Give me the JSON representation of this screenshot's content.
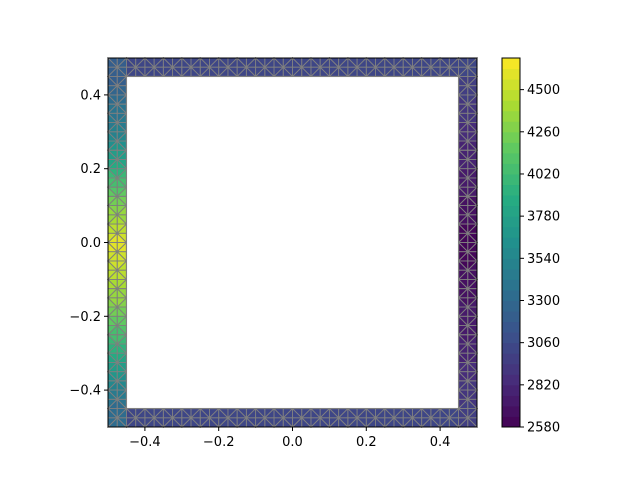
{
  "chart_data": {
    "type": "heatmap",
    "plot_kind": "filled tricontour over a triangulated square-ring mesh",
    "title": "",
    "xlabel": "",
    "ylabel": "",
    "xlim": [
      -0.5,
      0.5
    ],
    "ylim": [
      -0.5,
      0.5
    ],
    "x_ticks": [
      -0.4,
      -0.2,
      0.0,
      0.2,
      0.4
    ],
    "x_tick_labels": [
      "−0.4",
      "−0.2",
      "0.0",
      "0.2",
      "0.4"
    ],
    "y_ticks": [
      0.4,
      0.2,
      0.0,
      -0.2,
      -0.4
    ],
    "y_tick_labels": [
      "0.4",
      "0.2",
      "0.0",
      "−0.2",
      "−0.4"
    ],
    "domain": {
      "outer_square": [
        -0.5,
        0.5
      ],
      "inner_hole": [
        -0.45,
        0.45
      ]
    },
    "colorbar": {
      "colormap": "viridis",
      "range": [
        2580,
        4680
      ],
      "ticks": [
        2580,
        2820,
        3060,
        3300,
        3540,
        3780,
        4020,
        4260,
        4500
      ],
      "tick_labels": [
        "2580",
        "2820",
        "3060",
        "3300",
        "3540",
        "3780",
        "4020",
        "4260",
        "4500"
      ],
      "levels": 35
    },
    "field_profile": {
      "left_edge": [
        {
          "y": 0.45,
          "value": 3200
        },
        {
          "y": 0.3,
          "value": 3500
        },
        {
          "y": 0.15,
          "value": 4100
        },
        {
          "y": 0.0,
          "value": 4600
        },
        {
          "y": -0.15,
          "value": 4350
        },
        {
          "y": -0.3,
          "value": 3900
        },
        {
          "y": -0.45,
          "value": 3300
        }
      ],
      "right_edge": [
        {
          "y": 0.45,
          "value": 3000
        },
        {
          "y": 0.25,
          "value": 2800
        },
        {
          "y": 0.0,
          "value": 2600
        },
        {
          "y": -0.25,
          "value": 2750
        },
        {
          "y": -0.45,
          "value": 2950
        }
      ],
      "top_edge_value": 3050,
      "bottom_edge_value": 3050
    },
    "mesh_edge_color": "#808080",
    "grid": false
  }
}
